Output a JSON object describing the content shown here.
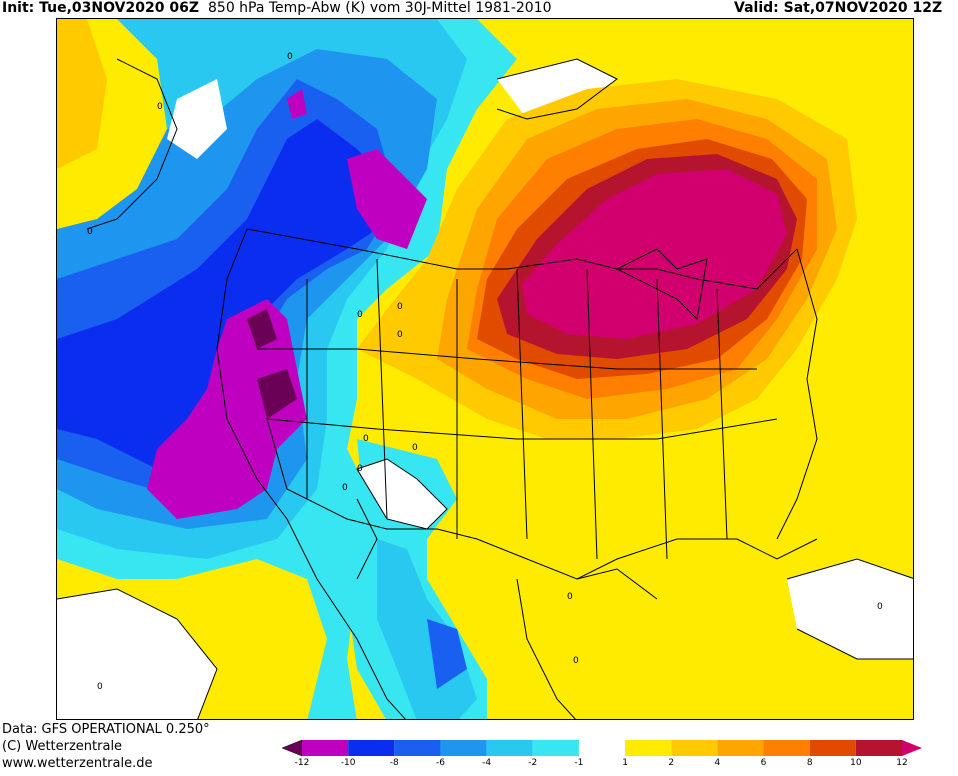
{
  "header": {
    "init": "Init: Tue,03NOV2020 06Z",
    "field": "850 hPa Temp-Abw (K) vom 30J-Mittel 1981-2010",
    "valid": "Valid: Sat,07NOV2020 12Z"
  },
  "footer": {
    "data_line": "Data: GFS OPERATIONAL 0.250°",
    "copyright": "(C) Wetterzentrale",
    "url": "www.wetterzentrale.de"
  },
  "colorbar": {
    "ticks": [
      "-12",
      "-10",
      "-8",
      "-6",
      "-4",
      "-2",
      "-1",
      "1",
      "2",
      "4",
      "6",
      "8",
      "10",
      "12"
    ],
    "colors": [
      "#6b0057",
      "#c000c0",
      "#0a2df0",
      "#1960f0",
      "#1e96f0",
      "#28c8f0",
      "#37e6f0",
      "#ffffff",
      "#ffeb00",
      "#ffcb00",
      "#ffa500",
      "#ff7f00",
      "#e14b00",
      "#b4142d",
      "#d2006e"
    ]
  },
  "map": {
    "contour_labels": [
      "0",
      "0",
      "0",
      "0",
      "0",
      "0",
      "0",
      "0",
      "0",
      "0",
      "0",
      "0",
      "0",
      "0"
    ]
  }
}
